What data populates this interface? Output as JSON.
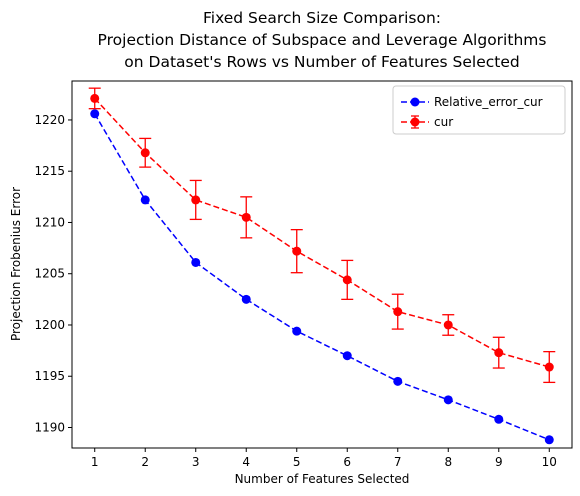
{
  "chart_data": {
    "type": "line",
    "title_lines": [
      "Fixed Search Size Comparison:",
      "Projection Distance of Subspace and Leverage Algorithms",
      "on Dataset's Rows vs Number of Features Selected"
    ],
    "xlabel": "Number of Features Selected",
    "ylabel": "Projection Frobenius Error",
    "x": [
      1,
      2,
      3,
      4,
      5,
      6,
      7,
      8,
      9,
      10
    ],
    "xticks": [
      1,
      2,
      3,
      4,
      5,
      6,
      7,
      8,
      9,
      10
    ],
    "yticks": [
      1190,
      1195,
      1200,
      1205,
      1210,
      1215,
      1220
    ],
    "xlim": [
      0.55,
      10.45
    ],
    "ylim": [
      1188.0,
      1223.8
    ],
    "grid": false,
    "legend_position": "top-right",
    "series": [
      {
        "name": "Relative_error_cur",
        "color": "#0000ff",
        "marker": "circle",
        "linestyle": "dashed",
        "values": [
          1220.6,
          1212.2,
          1206.1,
          1202.5,
          1199.4,
          1197.0,
          1194.5,
          1192.7,
          1190.8,
          1188.8
        ]
      },
      {
        "name": "cur",
        "color": "#ff0000",
        "marker": "circle",
        "linestyle": "dashed",
        "values": [
          1222.1,
          1216.8,
          1212.2,
          1210.5,
          1207.2,
          1204.4,
          1201.3,
          1200.0,
          1197.3,
          1195.9
        ],
        "error": [
          1.0,
          1.4,
          1.9,
          2.0,
          2.1,
          1.9,
          1.7,
          1.0,
          1.5,
          1.5
        ]
      }
    ]
  }
}
